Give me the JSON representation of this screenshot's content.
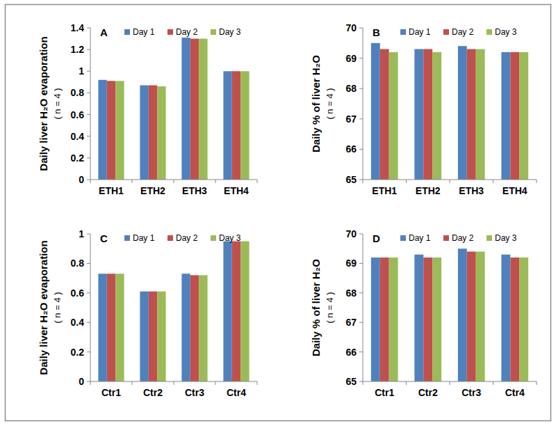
{
  "chart_data": [
    {
      "type": "bar",
      "title": "A",
      "ylabel": [
        "Daily liver H₂O evaporation",
        "( n = 4 )"
      ],
      "categories": [
        "ETH1",
        "ETH2",
        "ETH3",
        "ETH4"
      ],
      "series": [
        {
          "name": "Day 1",
          "color": "#4f81bd",
          "values": [
            0.92,
            0.87,
            1.31,
            1.0
          ]
        },
        {
          "name": "Day 2",
          "color": "#c0504d",
          "values": [
            0.91,
            0.87,
            1.3,
            1.0
          ]
        },
        {
          "name": "Day 3",
          "color": "#9bbb59",
          "values": [
            0.91,
            0.86,
            1.3,
            1.0
          ]
        }
      ],
      "ylim": [
        0,
        1.4
      ],
      "yticks": [
        0,
        0.2,
        0.4,
        0.6,
        0.8,
        1,
        1.2,
        1.4
      ],
      "grid": false,
      "legend": "top"
    },
    {
      "type": "bar",
      "title": "B",
      "ylabel": [
        "Daily % of liver H₂O",
        "( n = 4 )"
      ],
      "categories": [
        "ETH1",
        "ETH2",
        "ETH3",
        "ETH4"
      ],
      "series": [
        {
          "name": "Day 1",
          "color": "#4f81bd",
          "values": [
            69.5,
            69.3,
            69.4,
            69.2
          ]
        },
        {
          "name": "Day 2",
          "color": "#c0504d",
          "values": [
            69.3,
            69.3,
            69.3,
            69.2
          ]
        },
        {
          "name": "Day 3",
          "color": "#9bbb59",
          "values": [
            69.2,
            69.2,
            69.3,
            69.2
          ]
        }
      ],
      "ylim": [
        65,
        70
      ],
      "yticks": [
        65,
        66,
        67,
        68,
        69,
        70
      ],
      "grid": false,
      "legend": "top"
    },
    {
      "type": "bar",
      "title": "C",
      "ylabel": [
        "Daily liver H₂O evaporation",
        "( n = 4 )"
      ],
      "categories": [
        "Ctr1",
        "Ctr2",
        "Ctr3",
        "Ctr4"
      ],
      "series": [
        {
          "name": "Day 1",
          "color": "#4f81bd",
          "values": [
            0.73,
            0.61,
            0.73,
            0.95
          ]
        },
        {
          "name": "Day 2",
          "color": "#c0504d",
          "values": [
            0.73,
            0.61,
            0.72,
            0.95
          ]
        },
        {
          "name": "Day 3",
          "color": "#9bbb59",
          "values": [
            0.73,
            0.61,
            0.72,
            0.95
          ]
        }
      ],
      "ylim": [
        0,
        1
      ],
      "yticks": [
        0,
        0.2,
        0.4,
        0.6,
        0.8,
        1
      ],
      "grid": false,
      "legend": "top"
    },
    {
      "type": "bar",
      "title": "D",
      "ylabel": [
        "Daily % of liver H₂O",
        "( n = 4 )"
      ],
      "categories": [
        "Ctr1",
        "Ctr2",
        "Ctr3",
        "Ctr4"
      ],
      "series": [
        {
          "name": "Day 1",
          "color": "#4f81bd",
          "values": [
            69.2,
            69.3,
            69.5,
            69.3
          ]
        },
        {
          "name": "Day 2",
          "color": "#c0504d",
          "values": [
            69.2,
            69.2,
            69.4,
            69.2
          ]
        },
        {
          "name": "Day 3",
          "color": "#9bbb59",
          "values": [
            69.2,
            69.2,
            69.4,
            69.2
          ]
        }
      ],
      "ylim": [
        65,
        70
      ],
      "yticks": [
        65,
        66,
        67,
        68,
        69,
        70
      ],
      "grid": false,
      "legend": "top"
    }
  ]
}
